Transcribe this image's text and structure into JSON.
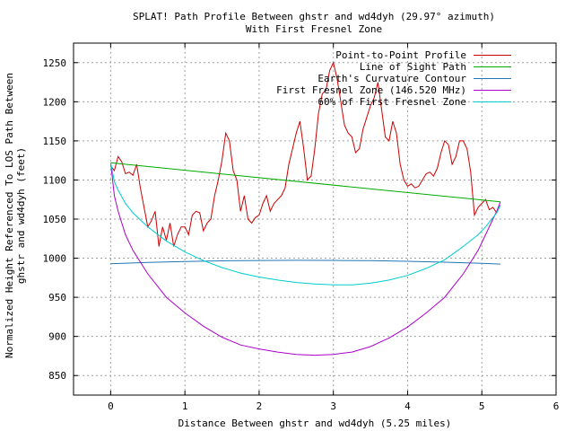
{
  "chart_data": {
    "type": "line",
    "title": "SPLAT! Path Profile Between ghstr and wd4dyh (29.97° azimuth)",
    "subtitle": "With First Fresnel Zone",
    "xlabel": "Distance Between ghstr and wd4dyh (5.25 miles)",
    "ylabel": "Normalized Height Referenced To LOS Path Between\nghstr and wd4dyh (feet)",
    "xlim": [
      -0.5,
      6
    ],
    "ylim": [
      825,
      1275
    ],
    "xticks": [
      0,
      1,
      2,
      3,
      4,
      5,
      6
    ],
    "yticks": [
      850,
      900,
      950,
      1000,
      1050,
      1100,
      1150,
      1200,
      1250
    ],
    "grid": true,
    "legend_position": "top-right",
    "series": [
      {
        "name": "Point-to-Point Profile",
        "color": "#cc0000",
        "x": [
          0,
          0.05,
          0.1,
          0.15,
          0.2,
          0.25,
          0.3,
          0.35,
          0.4,
          0.45,
          0.5,
          0.55,
          0.6,
          0.65,
          0.7,
          0.75,
          0.8,
          0.85,
          0.9,
          0.95,
          1.0,
          1.05,
          1.1,
          1.15,
          1.2,
          1.25,
          1.3,
          1.35,
          1.4,
          1.45,
          1.5,
          1.55,
          1.6,
          1.65,
          1.7,
          1.75,
          1.8,
          1.85,
          1.9,
          1.95,
          2.0,
          2.05,
          2.1,
          2.15,
          2.2,
          2.25,
          2.3,
          2.35,
          2.4,
          2.45,
          2.5,
          2.55,
          2.6,
          2.65,
          2.7,
          2.75,
          2.8,
          2.85,
          2.9,
          2.95,
          3.0,
          3.05,
          3.1,
          3.15,
          3.2,
          3.25,
          3.3,
          3.35,
          3.4,
          3.45,
          3.5,
          3.55,
          3.6,
          3.65,
          3.7,
          3.75,
          3.8,
          3.85,
          3.9,
          3.95,
          4.0,
          4.05,
          4.1,
          4.15,
          4.2,
          4.25,
          4.3,
          4.35,
          4.4,
          4.45,
          4.5,
          4.55,
          4.6,
          4.65,
          4.7,
          4.75,
          4.8,
          4.85,
          4.9,
          4.95,
          5.0,
          5.05,
          5.1,
          5.15,
          5.2,
          5.25
        ],
        "y": [
          1118,
          1112,
          1130,
          1123,
          1108,
          1110,
          1106,
          1120,
          1090,
          1065,
          1040,
          1048,
          1060,
          1015,
          1040,
          1023,
          1045,
          1015,
          1030,
          1040,
          1040,
          1030,
          1055,
          1060,
          1058,
          1035,
          1045,
          1050,
          1080,
          1100,
          1125,
          1160,
          1150,
          1112,
          1100,
          1060,
          1080,
          1050,
          1045,
          1052,
          1055,
          1070,
          1080,
          1060,
          1070,
          1075,
          1080,
          1090,
          1120,
          1140,
          1160,
          1175,
          1140,
          1100,
          1105,
          1140,
          1185,
          1210,
          1215,
          1240,
          1250,
          1230,
          1200,
          1170,
          1160,
          1155,
          1135,
          1140,
          1165,
          1180,
          1195,
          1205,
          1225,
          1190,
          1155,
          1150,
          1175,
          1160,
          1120,
          1100,
          1092,
          1095,
          1090,
          1092,
          1100,
          1108,
          1110,
          1105,
          1115,
          1135,
          1150,
          1145,
          1120,
          1130,
          1150,
          1150,
          1140,
          1110,
          1055,
          1065,
          1070,
          1075,
          1062,
          1065,
          1058,
          1068
        ]
      },
      {
        "name": "Line of Sight Path",
        "color": "#00aa00",
        "x": [
          0,
          5.25
        ],
        "y": [
          1122,
          1072
        ]
      },
      {
        "name": "Earth's Curvature Contour",
        "color": "#1f77b4",
        "x": [
          0,
          0.5,
          1,
          1.5,
          2,
          2.5,
          3,
          3.5,
          4,
          4.5,
          5,
          5.25
        ],
        "y": [
          993,
          994.5,
          995.7,
          996.6,
          997.1,
          997.3,
          997.2,
          996.8,
          996.0,
          994.9,
          993.4,
          992.5
        ]
      },
      {
        "name": "First Fresnel Zone (146.520 MHz)",
        "color": "#aa00cc",
        "x": [
          0,
          0.05,
          0.1,
          0.2,
          0.3,
          0.5,
          0.75,
          1.0,
          1.25,
          1.5,
          1.75,
          2.0,
          2.25,
          2.5,
          2.75,
          3.0,
          3.25,
          3.5,
          3.75,
          4.0,
          4.25,
          4.5,
          4.75,
          4.95,
          5.05,
          5.15,
          5.2,
          5.25
        ],
        "y": [
          1122,
          1080,
          1060,
          1030,
          1010,
          980,
          950,
          930,
          913,
          899,
          889,
          884,
          880,
          877,
          876,
          877,
          880,
          887,
          898,
          912,
          930,
          950,
          980,
          1010,
          1030,
          1050,
          1060,
          1072
        ]
      },
      {
        "name": "60% of First Fresnel Zone",
        "color": "#00cccc",
        "x": [
          0,
          0.05,
          0.1,
          0.2,
          0.3,
          0.5,
          0.75,
          1.0,
          1.25,
          1.5,
          1.75,
          2.0,
          2.25,
          2.5,
          2.75,
          3.0,
          3.25,
          3.5,
          3.75,
          4.0,
          4.25,
          4.5,
          4.75,
          4.95,
          5.05,
          5.15,
          5.2,
          5.25
        ],
        "y": [
          1122,
          1098,
          1087,
          1070,
          1058,
          1040,
          1022,
          1008,
          997,
          988,
          981,
          976,
          972,
          969,
          967,
          966,
          966,
          968,
          972,
          978,
          987,
          998,
          1015,
          1030,
          1040,
          1052,
          1058,
          1068
        ]
      }
    ]
  }
}
